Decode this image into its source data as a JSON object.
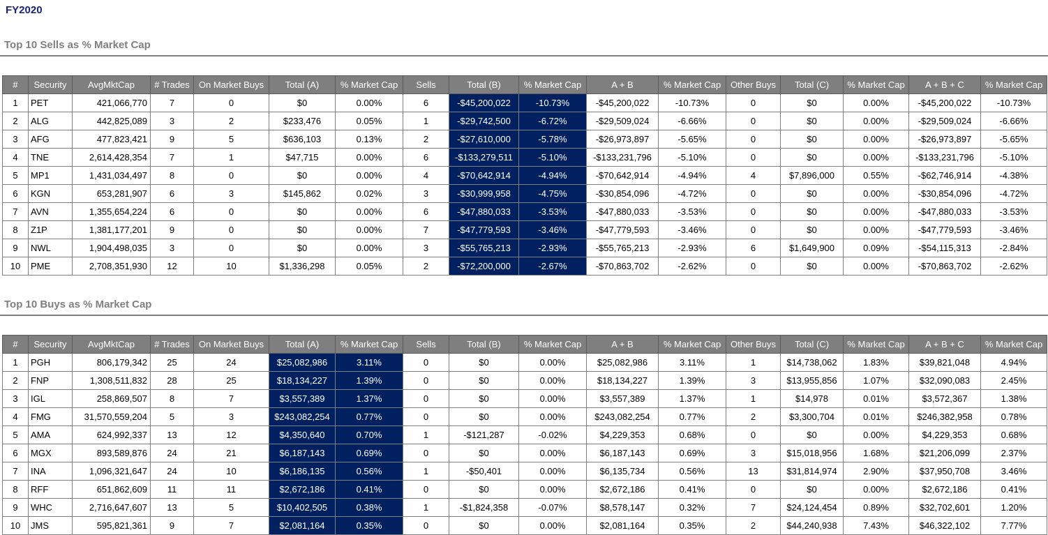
{
  "page": {
    "title": "FY2020"
  },
  "colors": {
    "title_blue": "#1A237E",
    "header_gray": "#7F7F7F",
    "highlight_navy": "#002060",
    "section_title_gray": "#7F7F7F"
  },
  "tables": [
    {
      "title": "Top 10 Sells as % Market Cap",
      "columns": [
        "#",
        "Security",
        "AvgMktCap",
        "# Trades",
        "On Market Buys",
        "Total (A)",
        "% Market Cap",
        "Sells",
        "Total (B)",
        "% Market Cap",
        "A + B",
        "% Market Cap",
        "Other Buys",
        "Total (C)",
        "% Market Cap",
        "A + B + C",
        "% Market Cap"
      ],
      "highlight_columns": [
        8,
        9
      ],
      "rows": [
        [
          "1",
          "PET",
          "421,066,770",
          "7",
          "0",
          "$0",
          "0.00%",
          "6",
          "-$45,200,022",
          "-10.73%",
          "-$45,200,022",
          "-10.73%",
          "0",
          "$0",
          "0.00%",
          "-$45,200,022",
          "-10.73%"
        ],
        [
          "2",
          "ALG",
          "442,825,089",
          "3",
          "2",
          "$233,476",
          "0.05%",
          "1",
          "-$29,742,500",
          "-6.72%",
          "-$29,509,024",
          "-6.66%",
          "0",
          "$0",
          "0.00%",
          "-$29,509,024",
          "-6.66%"
        ],
        [
          "3",
          "AFG",
          "477,823,421",
          "9",
          "5",
          "$636,103",
          "0.13%",
          "2",
          "-$27,610,000",
          "-5.78%",
          "-$26,973,897",
          "-5.65%",
          "0",
          "$0",
          "0.00%",
          "-$26,973,897",
          "-5.65%"
        ],
        [
          "4",
          "TNE",
          "2,614,428,354",
          "7",
          "1",
          "$47,715",
          "0.00%",
          "6",
          "-$133,279,511",
          "-5.10%",
          "-$133,231,796",
          "-5.10%",
          "0",
          "$0",
          "0.00%",
          "-$133,231,796",
          "-5.10%"
        ],
        [
          "5",
          "MP1",
          "1,431,034,497",
          "8",
          "0",
          "$0",
          "0.00%",
          "4",
          "-$70,642,914",
          "-4.94%",
          "-$70,642,914",
          "-4.94%",
          "4",
          "$7,896,000",
          "0.55%",
          "-$62,746,914",
          "-4.38%"
        ],
        [
          "6",
          "KGN",
          "653,281,907",
          "6",
          "3",
          "$145,862",
          "0.02%",
          "3",
          "-$30,999,958",
          "-4.75%",
          "-$30,854,096",
          "-4.72%",
          "0",
          "$0",
          "0.00%",
          "-$30,854,096",
          "-4.72%"
        ],
        [
          "7",
          "AVN",
          "1,355,654,224",
          "6",
          "0",
          "$0",
          "0.00%",
          "6",
          "-$47,880,033",
          "-3.53%",
          "-$47,880,033",
          "-3.53%",
          "0",
          "$0",
          "0.00%",
          "-$47,880,033",
          "-3.53%"
        ],
        [
          "8",
          "Z1P",
          "1,381,177,201",
          "9",
          "0",
          "$0",
          "0.00%",
          "7",
          "-$47,779,593",
          "-3.46%",
          "-$47,779,593",
          "-3.46%",
          "0",
          "$0",
          "0.00%",
          "-$47,779,593",
          "-3.46%"
        ],
        [
          "9",
          "NWL",
          "1,904,498,035",
          "3",
          "0",
          "$0",
          "0.00%",
          "3",
          "-$55,765,213",
          "-2.93%",
          "-$55,765,213",
          "-2.93%",
          "6",
          "$1,649,900",
          "0.09%",
          "-$54,115,313",
          "-2.84%"
        ],
        [
          "10",
          "PME",
          "2,708,351,930",
          "12",
          "10",
          "$1,336,298",
          "0.05%",
          "2",
          "-$72,200,000",
          "-2.67%",
          "-$70,863,702",
          "-2.62%",
          "0",
          "$0",
          "0.00%",
          "-$70,863,702",
          "-2.62%"
        ]
      ]
    },
    {
      "title": "Top 10 Buys as % Market Cap",
      "columns": [
        "#",
        "Security",
        "AvgMktCap",
        "# Trades",
        "On Market Buys",
        "Total (A)",
        "% Market Cap",
        "Sells",
        "Total (B)",
        "% Market Cap",
        "A + B",
        "% Market Cap",
        "Other Buys",
        "Total (C)",
        "% Market Cap",
        "A + B + C",
        "% Market Cap"
      ],
      "highlight_columns": [
        5,
        6
      ],
      "rows": [
        [
          "1",
          "PGH",
          "806,179,342",
          "25",
          "24",
          "$25,082,986",
          "3.11%",
          "0",
          "$0",
          "0.00%",
          "$25,082,986",
          "3.11%",
          "1",
          "$14,738,062",
          "1.83%",
          "$39,821,048",
          "4.94%"
        ],
        [
          "2",
          "FNP",
          "1,308,511,832",
          "28",
          "25",
          "$18,134,227",
          "1.39%",
          "0",
          "$0",
          "0.00%",
          "$18,134,227",
          "1.39%",
          "3",
          "$13,955,856",
          "1.07%",
          "$32,090,083",
          "2.45%"
        ],
        [
          "3",
          "IGL",
          "258,869,507",
          "8",
          "7",
          "$3,557,389",
          "1.37%",
          "0",
          "$0",
          "0.00%",
          "$3,557,389",
          "1.37%",
          "1",
          "$14,978",
          "0.01%",
          "$3,572,367",
          "1.38%"
        ],
        [
          "4",
          "FMG",
          "31,570,559,204",
          "5",
          "3",
          "$243,082,254",
          "0.77%",
          "0",
          "$0",
          "0.00%",
          "$243,082,254",
          "0.77%",
          "2",
          "$3,300,704",
          "0.01%",
          "$246,382,958",
          "0.78%"
        ],
        [
          "5",
          "AMA",
          "624,992,337",
          "13",
          "12",
          "$4,350,640",
          "0.70%",
          "1",
          "-$121,287",
          "-0.02%",
          "$4,229,353",
          "0.68%",
          "0",
          "$0",
          "0.00%",
          "$4,229,353",
          "0.68%"
        ],
        [
          "6",
          "MGX",
          "893,589,876",
          "24",
          "21",
          "$6,187,143",
          "0.69%",
          "0",
          "$0",
          "0.00%",
          "$6,187,143",
          "0.69%",
          "3",
          "$15,018,956",
          "1.68%",
          "$21,206,099",
          "2.37%"
        ],
        [
          "7",
          "INA",
          "1,096,321,647",
          "24",
          "10",
          "$6,186,135",
          "0.56%",
          "1",
          "-$50,401",
          "0.00%",
          "$6,135,734",
          "0.56%",
          "13",
          "$31,814,974",
          "2.90%",
          "$37,950,708",
          "3.46%"
        ],
        [
          "8",
          "RFF",
          "651,862,609",
          "11",
          "11",
          "$2,672,186",
          "0.41%",
          "0",
          "$0",
          "0.00%",
          "$2,672,186",
          "0.41%",
          "0",
          "$0",
          "0.00%",
          "$2,672,186",
          "0.41%"
        ],
        [
          "9",
          "WHC",
          "2,716,647,607",
          "13",
          "5",
          "$10,402,505",
          "0.38%",
          "1",
          "-$1,824,358",
          "-0.07%",
          "$8,578,147",
          "0.32%",
          "7",
          "$24,124,454",
          "0.89%",
          "$32,702,601",
          "1.20%"
        ],
        [
          "10",
          "JMS",
          "595,821,361",
          "9",
          "7",
          "$2,081,164",
          "0.35%",
          "0",
          "$0",
          "0.00%",
          "$2,081,164",
          "0.35%",
          "2",
          "$44,240,938",
          "7.43%",
          "$46,322,102",
          "7.77%"
        ]
      ]
    }
  ]
}
